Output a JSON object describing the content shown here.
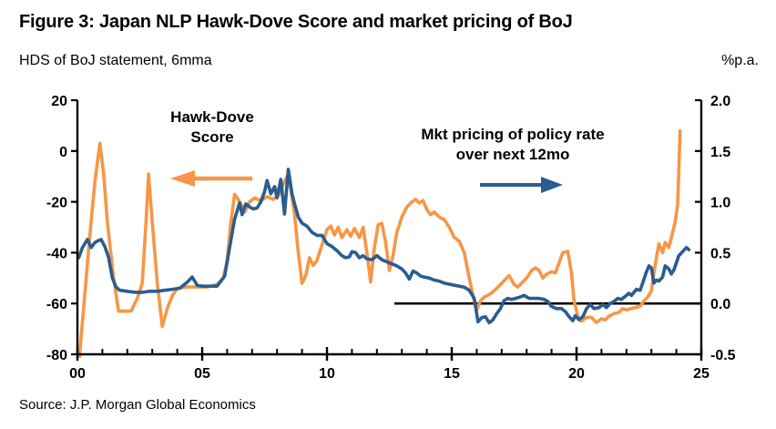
{
  "header": {
    "title": "Figure 3: Japan NLP Hawk-Dove Score and market pricing of BoJ",
    "left_axis_caption": "HDS of BoJ statement, 6mma",
    "right_axis_caption": "%p.a."
  },
  "footer": {
    "source": "Source: J.P. Morgan Global Economics"
  },
  "annotations": {
    "hds_label_line1": "Hawk-Dove",
    "hds_label_line2": "Score",
    "mkt_label_line1": "Mkt pricing of policy rate",
    "mkt_label_line2": "over next 12mo"
  },
  "colors": {
    "hds_line": "#F79646",
    "mkt_line": "#2B5C8F",
    "axis": "#000000",
    "zero_line": "#000000",
    "background": "#FFFFFF"
  },
  "chart_data": {
    "type": "line",
    "title": "Figure 3: Japan NLP Hawk-Dove Score and market pricing of BoJ",
    "subtitle_left": "HDS of BoJ statement, 6mma",
    "subtitle_right": "%p.a.",
    "grid": false,
    "legend_position": "annotations-inside-plot",
    "x_axis": {
      "min": 2000,
      "max": 2025,
      "major_tick_labels": [
        "00",
        "05",
        "10",
        "15",
        "20",
        "25"
      ],
      "major_tick_years": [
        2000,
        2005,
        2010,
        2015,
        2020,
        2025
      ],
      "minor_tick_interval": 1
    },
    "left_axis": {
      "label": "HDS of BoJ statement, 6mma",
      "min": -80,
      "max": 20,
      "ticks": [
        20,
        0,
        -20,
        -40,
        -60,
        -80
      ]
    },
    "right_axis": {
      "label": "%p.a.",
      "min": -0.5,
      "max": 2.0,
      "ticks": [
        "2.0",
        "1.5",
        "1.0",
        "0.5",
        "0.0",
        "-0.5"
      ]
    },
    "zero_line": {
      "axis": "right",
      "value": 0.0,
      "x_start": 2012.7,
      "x_end": 2025
    },
    "series": [
      {
        "name": "Hawk-Dove Score",
        "axis": "left",
        "color": "#F79646",
        "points": [
          [
            2000.08,
            -81
          ],
          [
            2000.3,
            -56
          ],
          [
            2000.5,
            -33
          ],
          [
            2000.7,
            -12
          ],
          [
            2000.9,
            3
          ],
          [
            2001.05,
            -9
          ],
          [
            2001.2,
            -28
          ],
          [
            2001.45,
            -50
          ],
          [
            2001.65,
            -63
          ],
          [
            2001.9,
            -63
          ],
          [
            2002.15,
            -63
          ],
          [
            2002.4,
            -58
          ],
          [
            2002.6,
            -52
          ],
          [
            2002.75,
            -28
          ],
          [
            2002.85,
            -9
          ],
          [
            2003.0,
            -28
          ],
          [
            2003.2,
            -52
          ],
          [
            2003.4,
            -69
          ],
          [
            2003.6,
            -62
          ],
          [
            2003.8,
            -57
          ],
          [
            2004.0,
            -54
          ],
          [
            2004.4,
            -53.5
          ],
          [
            2004.8,
            -53.5
          ],
          [
            2005.2,
            -53.5
          ],
          [
            2005.6,
            -52.5
          ],
          [
            2005.85,
            -50
          ],
          [
            2006.0,
            -43
          ],
          [
            2006.15,
            -28
          ],
          [
            2006.3,
            -17
          ],
          [
            2006.5,
            -20
          ],
          [
            2006.7,
            -24
          ],
          [
            2006.9,
            -20
          ],
          [
            2007.1,
            -18.5
          ],
          [
            2007.35,
            -19.5
          ],
          [
            2007.6,
            -18
          ],
          [
            2007.85,
            -19
          ],
          [
            2008.1,
            -17
          ],
          [
            2008.25,
            -13
          ],
          [
            2008.4,
            -10
          ],
          [
            2008.55,
            -15
          ],
          [
            2008.7,
            -25
          ],
          [
            2008.85,
            -40
          ],
          [
            2009.0,
            -52
          ],
          [
            2009.15,
            -49
          ],
          [
            2009.3,
            -42
          ],
          [
            2009.45,
            -45
          ],
          [
            2009.6,
            -43
          ],
          [
            2009.8,
            -37
          ],
          [
            2010.0,
            -31
          ],
          [
            2010.15,
            -29.5
          ],
          [
            2010.3,
            -33
          ],
          [
            2010.45,
            -30
          ],
          [
            2010.6,
            -34
          ],
          [
            2010.8,
            -31
          ],
          [
            2010.95,
            -33.5
          ],
          [
            2011.1,
            -30.5
          ],
          [
            2011.3,
            -34
          ],
          [
            2011.45,
            -30
          ],
          [
            2011.6,
            -40
          ],
          [
            2011.75,
            -51.5
          ],
          [
            2011.9,
            -38
          ],
          [
            2012.05,
            -29
          ],
          [
            2012.2,
            -28.5
          ],
          [
            2012.35,
            -36
          ],
          [
            2012.5,
            -47
          ],
          [
            2012.65,
            -41
          ],
          [
            2012.8,
            -32
          ],
          [
            2013.0,
            -26
          ],
          [
            2013.2,
            -22
          ],
          [
            2013.4,
            -20
          ],
          [
            2013.55,
            -19
          ],
          [
            2013.7,
            -20.5
          ],
          [
            2013.85,
            -19.5
          ],
          [
            2014.0,
            -23
          ],
          [
            2014.15,
            -25
          ],
          [
            2014.3,
            -24
          ],
          [
            2014.5,
            -26
          ],
          [
            2014.7,
            -27
          ],
          [
            2014.9,
            -30
          ],
          [
            2015.1,
            -34
          ],
          [
            2015.3,
            -35.5
          ],
          [
            2015.5,
            -40
          ],
          [
            2015.7,
            -50
          ],
          [
            2015.85,
            -57
          ],
          [
            2016.0,
            -62.5
          ],
          [
            2016.15,
            -59
          ],
          [
            2016.3,
            -57.5
          ],
          [
            2016.5,
            -56.5
          ],
          [
            2016.7,
            -55
          ],
          [
            2016.9,
            -53
          ],
          [
            2017.1,
            -51
          ],
          [
            2017.3,
            -49
          ],
          [
            2017.5,
            -52.5
          ],
          [
            2017.65,
            -53.5
          ],
          [
            2017.8,
            -52
          ],
          [
            2018.0,
            -50
          ],
          [
            2018.2,
            -47
          ],
          [
            2018.35,
            -46
          ],
          [
            2018.5,
            -47
          ],
          [
            2018.65,
            -50
          ],
          [
            2018.8,
            -48.5
          ],
          [
            2019.0,
            -47.5
          ],
          [
            2019.15,
            -48
          ],
          [
            2019.3,
            -44
          ],
          [
            2019.45,
            -40
          ],
          [
            2019.65,
            -39.5
          ],
          [
            2019.8,
            -48
          ],
          [
            2019.9,
            -59
          ],
          [
            2020.05,
            -65
          ],
          [
            2020.2,
            -67
          ],
          [
            2020.4,
            -65.5
          ],
          [
            2020.6,
            -65.5
          ],
          [
            2020.8,
            -67.5
          ],
          [
            2021.0,
            -66
          ],
          [
            2021.15,
            -66.5
          ],
          [
            2021.3,
            -65
          ],
          [
            2021.5,
            -64
          ],
          [
            2021.7,
            -63.5
          ],
          [
            2021.85,
            -62
          ],
          [
            2022.0,
            -62.5
          ],
          [
            2022.2,
            -62
          ],
          [
            2022.4,
            -61.5
          ],
          [
            2022.55,
            -61
          ],
          [
            2022.7,
            -59
          ],
          [
            2022.85,
            -57.5
          ],
          [
            2023.0,
            -55
          ],
          [
            2023.1,
            -48
          ],
          [
            2023.2,
            -42
          ],
          [
            2023.3,
            -36.5
          ],
          [
            2023.45,
            -40
          ],
          [
            2023.55,
            -36
          ],
          [
            2023.7,
            -38
          ],
          [
            2023.85,
            -32
          ],
          [
            2023.95,
            -28
          ],
          [
            2024.05,
            -21
          ],
          [
            2024.1,
            -8
          ],
          [
            2024.15,
            8
          ]
        ]
      },
      {
        "name": "Mkt pricing of policy rate over next 12mo",
        "axis": "right",
        "color": "#2B5C8F",
        "points": [
          [
            2000.05,
            0.45
          ],
          [
            2000.2,
            0.55
          ],
          [
            2000.4,
            0.63
          ],
          [
            2000.55,
            0.55
          ],
          [
            2000.7,
            0.6
          ],
          [
            2000.85,
            0.62
          ],
          [
            2000.95,
            0.63
          ],
          [
            2001.1,
            0.56
          ],
          [
            2001.25,
            0.45
          ],
          [
            2001.4,
            0.25
          ],
          [
            2001.55,
            0.16
          ],
          [
            2001.7,
            0.13
          ],
          [
            2002.0,
            0.12
          ],
          [
            2002.3,
            0.11
          ],
          [
            2002.6,
            0.11
          ],
          [
            2002.9,
            0.12
          ],
          [
            2003.2,
            0.12
          ],
          [
            2003.5,
            0.13
          ],
          [
            2003.8,
            0.14
          ],
          [
            2004.1,
            0.15
          ],
          [
            2004.4,
            0.21
          ],
          [
            2004.6,
            0.26
          ],
          [
            2004.8,
            0.18
          ],
          [
            2005.0,
            0.17
          ],
          [
            2005.3,
            0.17
          ],
          [
            2005.6,
            0.17
          ],
          [
            2005.9,
            0.27
          ],
          [
            2006.1,
            0.55
          ],
          [
            2006.3,
            0.83
          ],
          [
            2006.5,
            0.99
          ],
          [
            2006.6,
            0.875
          ],
          [
            2006.75,
            0.98
          ],
          [
            2006.9,
            0.95
          ],
          [
            2007.05,
            0.93
          ],
          [
            2007.2,
            0.94
          ],
          [
            2007.35,
            1.0
          ],
          [
            2007.5,
            1.1
          ],
          [
            2007.6,
            1.21
          ],
          [
            2007.75,
            1.08
          ],
          [
            2007.9,
            1.15
          ],
          [
            2008.0,
            1.04
          ],
          [
            2008.15,
            1.22
          ],
          [
            2008.3,
            0.88
          ],
          [
            2008.45,
            1.32
          ],
          [
            2008.6,
            1.08
          ],
          [
            2008.7,
            0.98
          ],
          [
            2008.85,
            0.85
          ],
          [
            2009.0,
            0.79
          ],
          [
            2009.2,
            0.76
          ],
          [
            2009.4,
            0.7
          ],
          [
            2009.6,
            0.67
          ],
          [
            2009.8,
            0.67
          ],
          [
            2010.0,
            0.59
          ],
          [
            2010.2,
            0.56
          ],
          [
            2010.4,
            0.52
          ],
          [
            2010.6,
            0.47
          ],
          [
            2010.75,
            0.45
          ],
          [
            2010.9,
            0.46
          ],
          [
            2011.0,
            0.51
          ],
          [
            2011.15,
            0.5
          ],
          [
            2011.3,
            0.45
          ],
          [
            2011.45,
            0.47
          ],
          [
            2011.6,
            0.44
          ],
          [
            2011.8,
            0.43
          ],
          [
            2012.0,
            0.47
          ],
          [
            2012.2,
            0.43
          ],
          [
            2012.4,
            0.41
          ],
          [
            2012.6,
            0.39
          ],
          [
            2012.8,
            0.37
          ],
          [
            2013.0,
            0.34
          ],
          [
            2013.15,
            0.3
          ],
          [
            2013.3,
            0.24
          ],
          [
            2013.45,
            0.32
          ],
          [
            2013.6,
            0.3
          ],
          [
            2013.75,
            0.27
          ],
          [
            2013.9,
            0.26
          ],
          [
            2014.1,
            0.25
          ],
          [
            2014.3,
            0.23
          ],
          [
            2014.5,
            0.22
          ],
          [
            2014.7,
            0.2
          ],
          [
            2014.9,
            0.19
          ],
          [
            2015.1,
            0.18
          ],
          [
            2015.3,
            0.17
          ],
          [
            2015.5,
            0.16
          ],
          [
            2015.7,
            0.13
          ],
          [
            2015.9,
            0.05
          ],
          [
            2016.05,
            -0.18
          ],
          [
            2016.2,
            -0.14
          ],
          [
            2016.35,
            -0.13
          ],
          [
            2016.5,
            -0.19
          ],
          [
            2016.65,
            -0.16
          ],
          [
            2016.8,
            -0.1
          ],
          [
            2016.95,
            -0.05
          ],
          [
            2017.1,
            0.03
          ],
          [
            2017.25,
            0.05
          ],
          [
            2017.4,
            0.04
          ],
          [
            2017.55,
            0.05
          ],
          [
            2017.7,
            0.06
          ],
          [
            2017.9,
            0.08
          ],
          [
            2018.1,
            0.05
          ],
          [
            2018.3,
            0.05
          ],
          [
            2018.5,
            0.05
          ],
          [
            2018.7,
            0.04
          ],
          [
            2018.85,
            0.02
          ],
          [
            2019.0,
            -0.03
          ],
          [
            2019.2,
            -0.05
          ],
          [
            2019.4,
            -0.05
          ],
          [
            2019.55,
            -0.08
          ],
          [
            2019.7,
            -0.13
          ],
          [
            2019.85,
            -0.17
          ],
          [
            2019.95,
            -0.12
          ],
          [
            2020.1,
            -0.16
          ],
          [
            2020.25,
            -0.13
          ],
          [
            2020.4,
            -0.05
          ],
          [
            2020.55,
            -0.01
          ],
          [
            2020.7,
            -0.05
          ],
          [
            2020.9,
            -0.04
          ],
          [
            2021.05,
            -0.01
          ],
          [
            2021.2,
            -0.04
          ],
          [
            2021.35,
            0.0
          ],
          [
            2021.5,
            0.02
          ],
          [
            2021.65,
            0.05
          ],
          [
            2021.8,
            0.04
          ],
          [
            2022.0,
            0.08
          ],
          [
            2022.1,
            0.1
          ],
          [
            2022.2,
            0.08
          ],
          [
            2022.4,
            0.14
          ],
          [
            2022.55,
            0.13
          ],
          [
            2022.65,
            0.2
          ],
          [
            2022.8,
            0.31
          ],
          [
            2022.9,
            0.37
          ],
          [
            2023.0,
            0.35
          ],
          [
            2023.1,
            0.2
          ],
          [
            2023.2,
            0.23
          ],
          [
            2023.3,
            0.22
          ],
          [
            2023.45,
            0.26
          ],
          [
            2023.55,
            0.37
          ],
          [
            2023.7,
            0.34
          ],
          [
            2023.8,
            0.29
          ],
          [
            2023.9,
            0.33
          ],
          [
            2024.0,
            0.4
          ],
          [
            2024.1,
            0.47
          ],
          [
            2024.25,
            0.51
          ],
          [
            2024.4,
            0.55
          ],
          [
            2024.5,
            0.53
          ]
        ]
      }
    ]
  }
}
